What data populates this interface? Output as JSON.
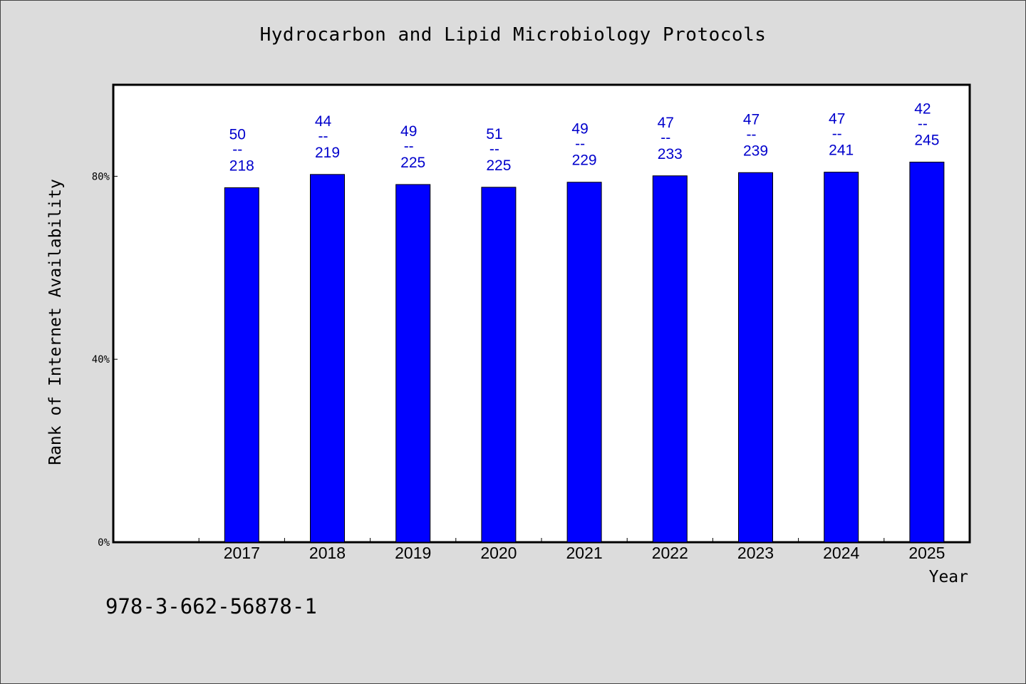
{
  "chart_data": {
    "type": "bar",
    "title": "Hydrocarbon and Lipid Microbiology Protocols",
    "xlabel": "Year",
    "ylabel": "Rank of Internet Availability",
    "categories": [
      "2017",
      "2018",
      "2019",
      "2020",
      "2021",
      "2022",
      "2023",
      "2024",
      "2025"
    ],
    "values": [
      77.5,
      80.4,
      78.2,
      77.6,
      78.7,
      80.1,
      80.8,
      80.9,
      83.1
    ],
    "labels_top": [
      "50",
      "44",
      "49",
      "51",
      "49",
      "47",
      "47",
      "47",
      "42"
    ],
    "labels_sep": "--",
    "labels_bottom": [
      "218",
      "219",
      "225",
      "225",
      "229",
      "233",
      "239",
      "241",
      "245"
    ],
    "ylim": [
      0,
      100
    ],
    "yticks": [
      0,
      40,
      80
    ],
    "ytick_labels": [
      "0%",
      "40%",
      "80%"
    ],
    "grid": false,
    "colors": {
      "bar": "#0000ff",
      "bar_stroke": "#000000",
      "label": "#0000cc",
      "plot_bg": "#ffffff",
      "page_bg": "#dcdcdc"
    }
  },
  "footer": {
    "isbn": "978-3-662-56878-1"
  }
}
